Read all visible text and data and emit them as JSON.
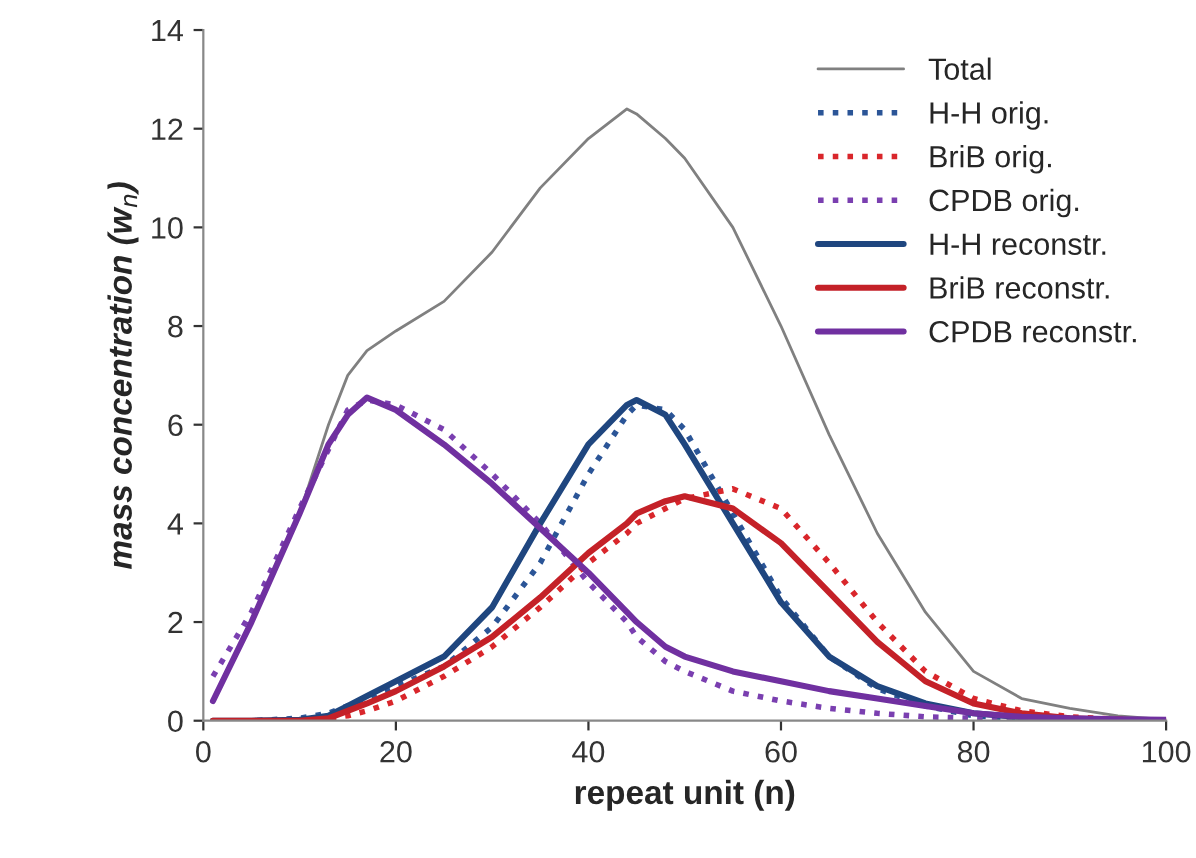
{
  "chart_data": {
    "type": "line",
    "xlabel": "repeat unit (n)",
    "ylabel": "mass concentration (w$_{n}$)",
    "x": [
      1,
      5,
      10,
      13,
      15,
      17,
      20,
      25,
      30,
      35,
      40,
      44,
      45,
      48,
      50,
      55,
      60,
      65,
      70,
      75,
      80,
      85,
      90,
      95,
      100
    ],
    "xlim": [
      0,
      100
    ],
    "xticks": [
      0,
      20,
      40,
      60,
      80,
      100
    ],
    "ylim": [
      0,
      14
    ],
    "yticks": [
      0,
      2,
      4,
      6,
      8,
      10,
      12,
      14
    ],
    "grid": false,
    "legend": "top right",
    "marker": "none",
    "series": [
      {
        "name": "Total",
        "color": "#808080",
        "line_style": "solid",
        "values": [
          0.4,
          2.0,
          4.2,
          6.0,
          7.0,
          7.5,
          7.9,
          8.5,
          9.5,
          10.8,
          11.8,
          12.4,
          12.3,
          11.8,
          11.4,
          10.0,
          8.0,
          5.8,
          3.8,
          2.2,
          1.0,
          0.45,
          0.25,
          0.1,
          0.02
        ]
      },
      {
        "name": "H-H orig.",
        "color": "#2b5597",
        "line_style": "dotted",
        "values": [
          0,
          0,
          0.05,
          0.15,
          0.3,
          0.45,
          0.7,
          1.1,
          1.9,
          3.2,
          5.0,
          6.2,
          6.4,
          6.3,
          5.9,
          4.2,
          2.5,
          1.3,
          0.65,
          0.3,
          0.1,
          0.05,
          0.02,
          null,
          null
        ]
      },
      {
        "name": "BriB orig.",
        "color": "#d9262b",
        "line_style": "dotted",
        "values": [
          0,
          0,
          0,
          0.05,
          0.1,
          0.2,
          0.4,
          0.9,
          1.5,
          2.3,
          3.2,
          3.8,
          4.0,
          4.3,
          4.5,
          4.7,
          4.3,
          3.2,
          2.0,
          1.0,
          0.45,
          0.2,
          0.08,
          0.03,
          0
        ]
      },
      {
        "name": "CPDB orig.",
        "color": "#7a3fb0",
        "line_style": "dotted",
        "values": [
          0.9,
          2.2,
          4.3,
          5.5,
          6.3,
          6.5,
          6.4,
          5.9,
          5.0,
          4.0,
          2.8,
          2.0,
          1.7,
          1.2,
          1.0,
          0.6,
          0.4,
          0.25,
          0.15,
          0.08,
          0.05,
          0.02,
          0,
          0,
          0
        ]
      },
      {
        "name": "H-H reconstr.",
        "color": "#1f467f",
        "line_style": "solid",
        "values": [
          0,
          0,
          0.02,
          0.1,
          0.3,
          0.5,
          0.8,
          1.3,
          2.3,
          4.0,
          5.6,
          6.4,
          6.5,
          6.2,
          5.6,
          4.0,
          2.4,
          1.3,
          0.7,
          0.35,
          0.15,
          0.07,
          0.03,
          null,
          null
        ]
      },
      {
        "name": "BriB reconstr.",
        "color": "#c42128",
        "line_style": "solid",
        "values": [
          0,
          0,
          0,
          0.05,
          0.2,
          0.35,
          0.6,
          1.1,
          1.7,
          2.5,
          3.4,
          4.0,
          4.2,
          4.45,
          4.55,
          4.3,
          3.6,
          2.6,
          1.6,
          0.8,
          0.35,
          0.15,
          0.05,
          0.02,
          0
        ]
      },
      {
        "name": "CPDB reconstr.",
        "color": "#7030a0",
        "line_style": "solid",
        "values": [
          0.4,
          2.0,
          4.2,
          5.6,
          6.2,
          6.55,
          6.3,
          5.6,
          4.8,
          3.9,
          3.0,
          2.2,
          2.0,
          1.5,
          1.3,
          1.0,
          0.8,
          0.6,
          0.45,
          0.3,
          0.15,
          0.08,
          0.05,
          0.03,
          0.02
        ]
      }
    ]
  }
}
